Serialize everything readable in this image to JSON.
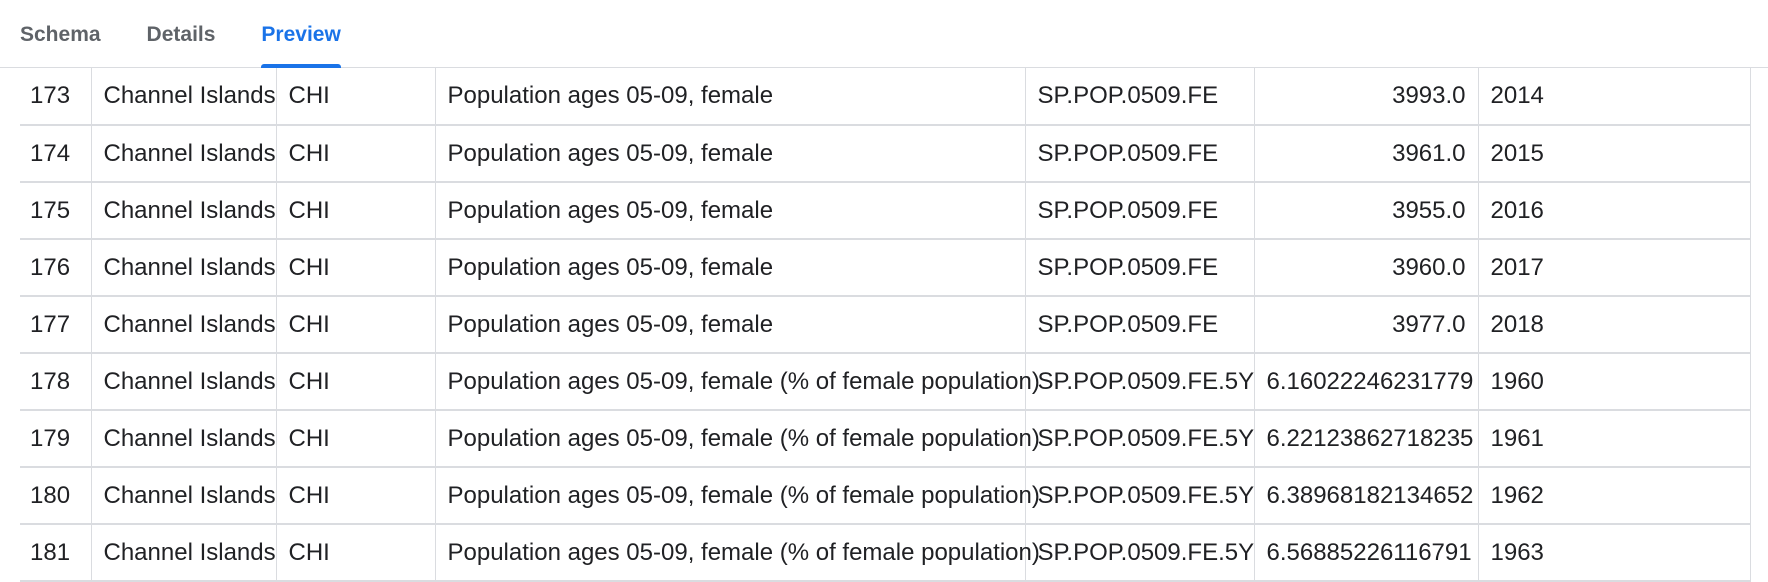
{
  "tabs": [
    {
      "label": "Schema",
      "active": false
    },
    {
      "label": "Details",
      "active": false
    },
    {
      "label": "Preview",
      "active": true
    }
  ],
  "rows": [
    [
      "173",
      "Channel Islands",
      "CHI",
      "Population ages 05-09, female",
      "SP.POP.0509.FE",
      "3993.0",
      "2014"
    ],
    [
      "174",
      "Channel Islands",
      "CHI",
      "Population ages 05-09, female",
      "SP.POP.0509.FE",
      "3961.0",
      "2015"
    ],
    [
      "175",
      "Channel Islands",
      "CHI",
      "Population ages 05-09, female",
      "SP.POP.0509.FE",
      "3955.0",
      "2016"
    ],
    [
      "176",
      "Channel Islands",
      "CHI",
      "Population ages 05-09, female",
      "SP.POP.0509.FE",
      "3960.0",
      "2017"
    ],
    [
      "177",
      "Channel Islands",
      "CHI",
      "Population ages 05-09, female",
      "SP.POP.0509.FE",
      "3977.0",
      "2018"
    ],
    [
      "178",
      "Channel Islands",
      "CHI",
      "Population ages 05-09, female (% of female population)",
      "SP.POP.0509.FE.5Y",
      "6.16022246231779",
      "1960"
    ],
    [
      "179",
      "Channel Islands",
      "CHI",
      "Population ages 05-09, female (% of female population)",
      "SP.POP.0509.FE.5Y",
      "6.22123862718235",
      "1961"
    ],
    [
      "180",
      "Channel Islands",
      "CHI",
      "Population ages 05-09, female (% of female population)",
      "SP.POP.0509.FE.5Y",
      "6.38968182134652",
      "1962"
    ],
    [
      "181",
      "Channel Islands",
      "CHI",
      "Population ages 05-09, female (% of female population)",
      "SP.POP.0509.FE.5Y",
      "6.56885226116791",
      "1963"
    ]
  ],
  "colors": {
    "accent": "#1a73e8",
    "tab_inactive": "#5f6368",
    "grid_line": "#dadce0",
    "text": "#202124"
  }
}
